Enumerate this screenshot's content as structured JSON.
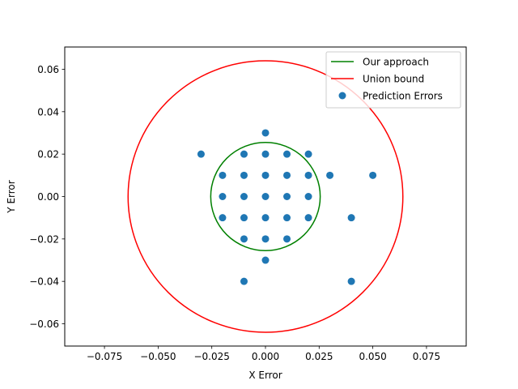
{
  "chart_data": {
    "type": "scatter",
    "title": "",
    "xlabel": "X Error",
    "ylabel": "Y Error",
    "xlim": [
      -0.0935,
      0.0935
    ],
    "ylim": [
      -0.0705,
      0.0705
    ],
    "xticks": [
      -0.075,
      -0.05,
      -0.025,
      0.0,
      0.025,
      0.05,
      0.075
    ],
    "xtick_labels": [
      "−0.075",
      "−0.050",
      "−0.025",
      "0.000",
      "0.025",
      "0.050",
      "0.075"
    ],
    "yticks": [
      -0.06,
      -0.04,
      -0.02,
      0.0,
      0.02,
      0.04,
      0.06
    ],
    "ytick_labels": [
      "−0.06",
      "−0.04",
      "−0.02",
      "0.00",
      "0.02",
      "0.04",
      "0.06"
    ],
    "grid": false,
    "legend_position": "upper right",
    "series": [
      {
        "name": "Our approach",
        "kind": "circle",
        "center": [
          0,
          0
        ],
        "radius": 0.0255,
        "color": "#008000"
      },
      {
        "name": "Union bound",
        "kind": "circle",
        "center": [
          0,
          0
        ],
        "radius": 0.064,
        "color": "#ff0000"
      },
      {
        "name": "Prediction Errors",
        "kind": "scatter",
        "color": "#1f77b4",
        "points": [
          [
            0.0,
            0.03
          ],
          [
            -0.03,
            0.02
          ],
          [
            -0.01,
            0.02
          ],
          [
            0.0,
            0.02
          ],
          [
            0.01,
            0.02
          ],
          [
            0.02,
            0.02
          ],
          [
            -0.02,
            0.01
          ],
          [
            -0.01,
            0.01
          ],
          [
            0.0,
            0.01
          ],
          [
            0.01,
            0.01
          ],
          [
            0.02,
            0.01
          ],
          [
            0.03,
            0.01
          ],
          [
            0.05,
            0.01
          ],
          [
            -0.02,
            0.0
          ],
          [
            -0.01,
            0.0
          ],
          [
            0.0,
            0.0
          ],
          [
            0.01,
            0.0
          ],
          [
            0.02,
            0.0
          ],
          [
            -0.02,
            -0.01
          ],
          [
            -0.01,
            -0.01
          ],
          [
            0.0,
            -0.01
          ],
          [
            0.01,
            -0.01
          ],
          [
            0.02,
            -0.01
          ],
          [
            0.04,
            -0.01
          ],
          [
            -0.01,
            -0.02
          ],
          [
            0.0,
            -0.02
          ],
          [
            0.01,
            -0.02
          ],
          [
            0.0,
            -0.03
          ],
          [
            -0.01,
            -0.04
          ],
          [
            0.04,
            -0.04
          ]
        ]
      }
    ]
  }
}
